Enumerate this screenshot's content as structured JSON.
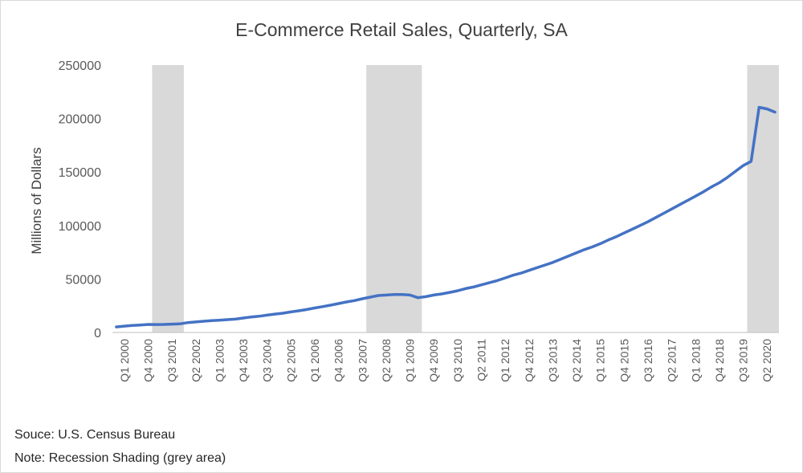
{
  "chart_data": {
    "type": "line",
    "title": "E-Commerce Retail Sales, Quarterly, SA",
    "xlabel": "",
    "ylabel": "Millions of Dollars",
    "ylim": [
      0,
      250000
    ],
    "yticks": [
      0,
      50000,
      100000,
      150000,
      200000,
      250000
    ],
    "grid": false,
    "legend": "none",
    "colors": {
      "line": "#4472c4",
      "recession": "#d9d9d9",
      "axis": "#bfbfbf",
      "text": "#595959"
    },
    "x_tick_labels": [
      "Q1 2000",
      "Q4 2000",
      "Q3 2001",
      "Q2 2002",
      "Q1 2003",
      "Q4 2003",
      "Q3 2004",
      "Q2 2005",
      "Q1 2006",
      "Q4 2006",
      "Q3 2007",
      "Q2 2008",
      "Q1 2009",
      "Q4 2009",
      "Q3 2010",
      "Q2 2011",
      "Q1 2012",
      "Q4 2012",
      "Q3 2013",
      "Q2 2014",
      "Q1 2015",
      "Q4 2015",
      "Q3 2016",
      "Q2 2017",
      "Q1 2018",
      "Q4 2018",
      "Q3 2019",
      "Q2 2020"
    ],
    "x": [
      "Q4 1999",
      "Q1 2000",
      "Q2 2000",
      "Q3 2000",
      "Q4 2000",
      "Q1 2001",
      "Q2 2001",
      "Q3 2001",
      "Q4 2001",
      "Q1 2002",
      "Q2 2002",
      "Q3 2002",
      "Q4 2002",
      "Q1 2003",
      "Q2 2003",
      "Q3 2003",
      "Q4 2003",
      "Q1 2004",
      "Q2 2004",
      "Q3 2004",
      "Q4 2004",
      "Q1 2005",
      "Q2 2005",
      "Q3 2005",
      "Q4 2005",
      "Q1 2006",
      "Q2 2006",
      "Q3 2006",
      "Q4 2006",
      "Q1 2007",
      "Q2 2007",
      "Q3 2007",
      "Q4 2007",
      "Q1 2008",
      "Q2 2008",
      "Q3 2008",
      "Q4 2008",
      "Q1 2009",
      "Q2 2009",
      "Q3 2009",
      "Q4 2009",
      "Q1 2010",
      "Q2 2010",
      "Q3 2010",
      "Q4 2010",
      "Q1 2011",
      "Q2 2011",
      "Q3 2011",
      "Q4 2011",
      "Q1 2012",
      "Q2 2012",
      "Q3 2012",
      "Q4 2012",
      "Q1 2013",
      "Q2 2013",
      "Q3 2013",
      "Q4 2013",
      "Q1 2014",
      "Q2 2014",
      "Q3 2014",
      "Q4 2014",
      "Q1 2015",
      "Q2 2015",
      "Q3 2015",
      "Q4 2015",
      "Q1 2016",
      "Q2 2016",
      "Q3 2016",
      "Q4 2016",
      "Q1 2017",
      "Q2 2017",
      "Q3 2017",
      "Q4 2017",
      "Q1 2018",
      "Q2 2018",
      "Q3 2018",
      "Q4 2018",
      "Q1 2019",
      "Q2 2019",
      "Q3 2019",
      "Q4 2019",
      "Q1 2020",
      "Q2 2020",
      "Q3 2020"
    ],
    "series": [
      {
        "values": [
          5200,
          5900,
          6500,
          7000,
          7500,
          7400,
          7500,
          7800,
          8000,
          9200,
          9800,
          10500,
          11000,
          11500,
          12000,
          12500,
          13500,
          14500,
          15200,
          16200,
          17200,
          18000,
          19200,
          20300,
          21500,
          22900,
          24200,
          25500,
          27000,
          28500,
          29800,
          31500,
          33000,
          34500,
          35000,
          35500,
          35500,
          35000,
          32500,
          33500,
          35000,
          36000,
          37500,
          39000,
          41000,
          42500,
          44500,
          46500,
          48500,
          51000,
          53500,
          55500,
          58000,
          60500,
          63000,
          65500,
          68500,
          71500,
          74500,
          77500,
          80000,
          83000,
          86500,
          89500,
          93000,
          96500,
          100000,
          103500,
          107500,
          111500,
          115500,
          119500,
          123500,
          127500,
          131500,
          136000,
          140000,
          145000,
          150500,
          156000,
          160000,
          210500,
          209000,
          206000
        ]
      }
    ],
    "recessions": [
      [
        "Q1 2001",
        "Q4 2001"
      ],
      [
        "Q4 2007",
        "Q2 2009"
      ],
      [
        "Q4 2019",
        "Q3 2020"
      ]
    ]
  },
  "footer": {
    "source": "Souce: U.S. Census Bureau",
    "note": "Note: Recession Shading (grey area)"
  }
}
